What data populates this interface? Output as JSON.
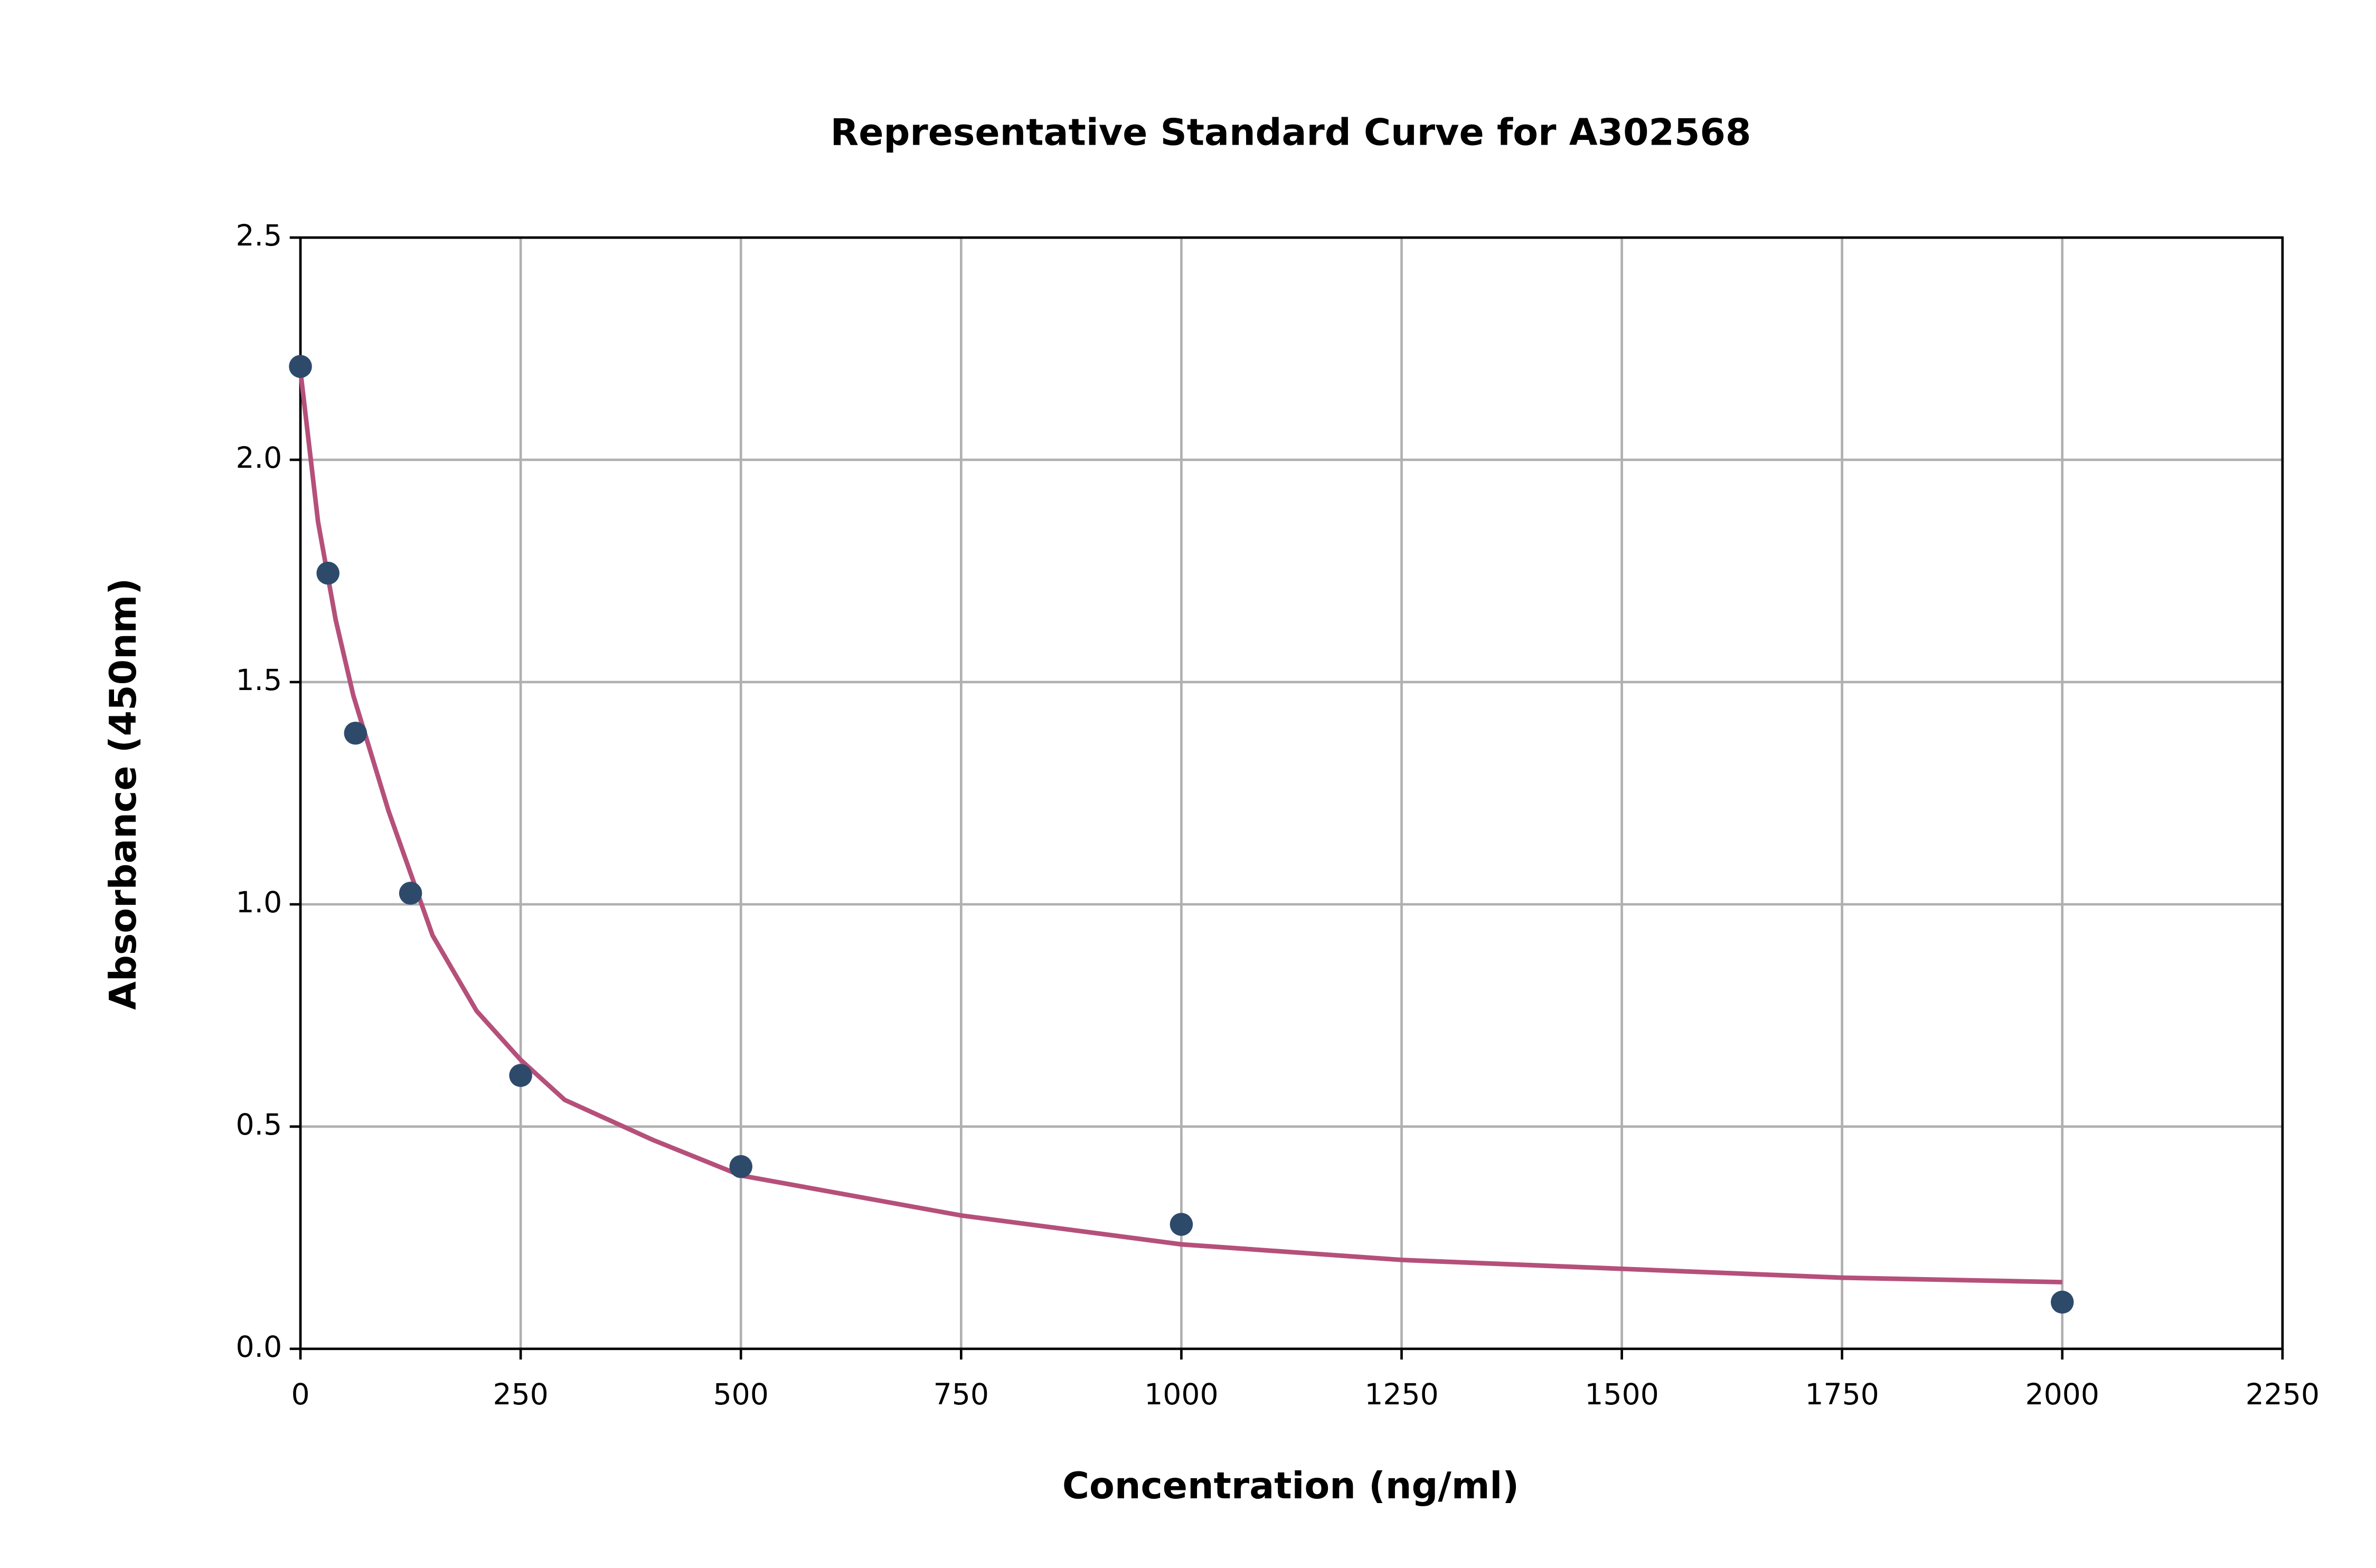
{
  "chart_data": {
    "type": "scatter",
    "title": "Representative Standard Curve for A302568",
    "xlabel": "Concentration (ng/ml)",
    "ylabel": "Absorbance (450nm)",
    "series": [
      {
        "type": "scatter",
        "color": "#2e4a6b",
        "x": [
          0,
          31.25,
          62.5,
          125,
          250,
          500,
          1000,
          2000
        ],
        "values": [
          2.21,
          1.745,
          1.385,
          1.025,
          0.615,
          0.41,
          0.28,
          0.105
        ]
      },
      {
        "type": "line",
        "color": "#b5507a",
        "x": [
          0,
          20,
          40,
          60,
          100,
          150,
          200,
          250,
          300,
          400,
          500,
          750,
          1000,
          1250,
          1500,
          1750,
          2000
        ],
        "values": [
          2.2,
          1.86,
          1.64,
          1.47,
          1.21,
          0.93,
          0.76,
          0.65,
          0.56,
          0.47,
          0.39,
          0.3,
          0.235,
          0.2,
          0.18,
          0.16,
          0.15
        ]
      }
    ],
    "xlim": [
      0,
      2250
    ],
    "xticks": [
      0,
      250,
      500,
      750,
      1000,
      1250,
      1500,
      1750,
      2000,
      2250
    ],
    "ylim": [
      0,
      2.5
    ],
    "yticks": [
      {
        "value": 0,
        "label": "0.0"
      },
      0.5,
      {
        "value": 1,
        "label": "1.0"
      },
      1.5,
      {
        "value": 2,
        "label": "2.0"
      },
      2.5
    ],
    "grid": true
  }
}
